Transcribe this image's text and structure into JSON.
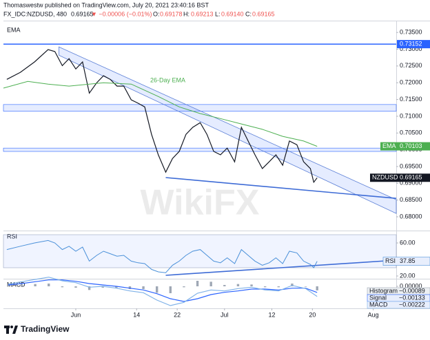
{
  "header": {
    "author_line": "Thomaswestw published on TradingView.com, July 20, 2021 23:40:16 BST",
    "symbol": "FX_IDC:NZDUSD, 480",
    "last": "0.69165",
    "change": "▼ −0.00006 (−0.01%)",
    "o_label": "O:",
    "o": "0.69178",
    "h_label": "H:",
    "h": "0.69213",
    "l_label": "L:",
    "l": "0.69140",
    "c_label": "C:",
    "c": "0.69165"
  },
  "watermark": "WikiFX",
  "footer": {
    "logo": "TradingView"
  },
  "chart_data": [
    {
      "type": "line",
      "title": "EMA",
      "x": [
        -10.2,
        -8.2,
        -6.1,
        -4.1,
        -3.1,
        -2,
        -1,
        0,
        1,
        2,
        3.1,
        4.1,
        5.1,
        6.1,
        7.1,
        8.2,
        9.2,
        10.2,
        11.2,
        12.2,
        13.3,
        14.3,
        15.3,
        16.3,
        17.3,
        18.4,
        19.4,
        20.4,
        21.4,
        22.4,
        23.5,
        24.5,
        25.5,
        26.5,
        27.6,
        28.6,
        29.6,
        30.6,
        31.6,
        32.7,
        33.7,
        34.7,
        35.2,
        35.7
      ],
      "series": [
        {
          "name": "NZDUSD",
          "color": "#131722",
          "values": [
            0.721,
            0.7231,
            0.7262,
            0.7299,
            0.7293,
            0.7251,
            0.7272,
            0.7241,
            0.7262,
            0.7169,
            0.72,
            0.7221,
            0.721,
            0.719,
            0.719,
            0.7149,
            0.7139,
            0.7128,
            0.7046,
            0.6985,
            0.6933,
            0.6974,
            0.6995,
            0.7046,
            0.7067,
            0.7081,
            0.7046,
            0.6995,
            0.6985,
            0.7005,
            0.6964,
            0.7067,
            0.7026,
            0.6985,
            0.6944,
            0.6964,
            0.6985,
            0.6954,
            0.7026,
            0.7015,
            0.6964,
            0.6944,
            0.6903,
            0.69165
          ]
        },
        {
          "name": "EMA",
          "color": "#4caf50",
          "annotation": "26-Day EMA",
          "x": [
            -10.7,
            -7.1,
            -4.1,
            -1,
            4.1,
            8.2,
            12.2,
            15.3,
            18.4,
            21.4,
            24.5,
            27.6,
            30.6,
            33.7,
            35.7
          ],
          "values": [
            0.7184,
            0.7204,
            0.7196,
            0.719,
            0.72,
            0.7196,
            0.7159,
            0.7128,
            0.7108,
            0.7093,
            0.7077,
            0.7061,
            0.704,
            0.7026,
            0.70103
          ]
        }
      ],
      "hlines": [
        {
          "value": 0.73152,
          "color": "#2962ff"
        }
      ],
      "zones": [
        {
          "from": 0.7115,
          "to": 0.7135
        },
        {
          "from": 0.6995,
          "to": 0.7005
        }
      ],
      "channel": {
        "x": [
          -2.5,
          47.4
        ],
        "upper": [
          0.7307,
          0.6851
        ],
        "lower": [
          0.7282,
          0.681
        ]
      },
      "trendlines": [
        {
          "x": [
            13.3,
            47.4
          ],
          "y": [
            0.6917,
            0.6855
          ],
          "color": "#3d6bd6"
        }
      ],
      "xlim": [
        -10.7,
        47.4
      ],
      "ylim": [
        0.6763,
        0.7375
      ],
      "yticks": [
        {
          "value": 0.68,
          "label": "0.68000"
        },
        {
          "value": 0.685,
          "label": "0.68500"
        },
        {
          "value": 0.69,
          "label": "0.69000"
        },
        {
          "value": 0.695,
          "label": "0.69500"
        },
        {
          "value": 0.7,
          "label": "0.70000"
        },
        {
          "value": 0.705,
          "label": "0.70500"
        },
        {
          "value": 0.71,
          "label": "0.71000"
        },
        {
          "value": 0.715,
          "label": "0.71500"
        },
        {
          "value": 0.72,
          "label": "0.72000"
        },
        {
          "value": 0.725,
          "label": "0.72500"
        },
        {
          "value": 0.73,
          "label": "0.73000"
        },
        {
          "value": 0.735,
          "label": "0.73500"
        }
      ]
    },
    {
      "type": "line",
      "title": "RSI",
      "x": [
        -10.2,
        -8.2,
        -6.1,
        -4.1,
        -3.1,
        -2,
        -1,
        0,
        1,
        2,
        3.1,
        4.1,
        5.1,
        6.1,
        7.1,
        8.2,
        9.2,
        10.2,
        11.2,
        12.2,
        13.3,
        14.3,
        15.3,
        16.3,
        17.3,
        18.4,
        19.4,
        20.4,
        21.4,
        22.4,
        23.5,
        24.5,
        25.5,
        26.5,
        27.6,
        28.6,
        29.6,
        30.6,
        31.6,
        32.7,
        33.7,
        34.7,
        35.2,
        35.7
      ],
      "series": [
        {
          "name": "RSI",
          "color": "#4a90d9",
          "values": [
            52,
            56,
            60,
            63,
            60,
            52,
            56,
            50,
            55,
            38,
            45,
            50,
            47,
            44,
            45,
            38,
            36,
            35,
            28,
            25,
            24,
            33,
            38,
            45,
            50,
            52,
            45,
            38,
            36,
            42,
            35,
            52,
            45,
            38,
            33,
            36,
            42,
            35,
            50,
            48,
            38,
            34,
            30,
            37.85
          ]
        }
      ],
      "band": [
        30,
        70
      ],
      "trendlines": [
        {
          "x": [
            13.3,
            47.4
          ],
          "y": [
            20.8,
            39.2
          ],
          "color": "#3d6bd6"
        }
      ],
      "xlim": [
        -10.7,
        47.4
      ],
      "ylim": [
        17.5,
        72.5
      ],
      "yticks": [
        {
          "value": 60,
          "label": "60.00"
        },
        {
          "value": 20,
          "label": "20.00"
        }
      ]
    },
    {
      "type": "macd",
      "title": "MACD",
      "x": [
        -10,
        -8,
        -6,
        -4,
        -2,
        0,
        2,
        4,
        6,
        8,
        10,
        12,
        14,
        16,
        18,
        20,
        22,
        24,
        26,
        28,
        30,
        32,
        34,
        35.7
      ],
      "series": [
        {
          "name": "Histogram",
          "color": "#9fa8b5",
          "last_value_label": "−0.00089",
          "values": [
            0.0002,
            0.0004,
            0.0005,
            0.0006,
            -0.0002,
            -0.0003,
            -0.0008,
            -0.0003,
            -0.0004,
            -0.0006,
            -0.0006,
            -0.0014,
            -0.0015,
            -0.0002,
            0.0012,
            0.001,
            0.0003,
            0.0005,
            0.0004,
            -0.0002,
            -0.0002,
            0.0006,
            -0.0001,
            -0.00089
          ]
        },
        {
          "name": "Signal",
          "color": "#2962ff",
          "last_value_label": "−0.00133",
          "values": [
            0.0003,
            0.0006,
            0.001,
            0.0014,
            0.0014,
            0.0011,
            0.0006,
            0.0003,
            0.0,
            -0.0004,
            -0.0008,
            -0.0016,
            -0.0027,
            -0.0033,
            -0.0027,
            -0.0018,
            -0.0013,
            -0.001,
            -0.0006,
            -0.0006,
            -0.0008,
            -0.0004,
            -0.0004,
            -0.00133
          ]
        },
        {
          "name": "MACD",
          "color": "#7fb2e8",
          "last_value_label": "−0.00222",
          "values": [
            0.0005,
            0.001,
            0.0015,
            0.002,
            0.0012,
            0.0008,
            -0.0002,
            0.0,
            -0.0004,
            -0.001,
            -0.0014,
            -0.003,
            -0.0042,
            -0.0035,
            -0.0015,
            -0.0008,
            -0.001,
            -0.0005,
            -0.0002,
            -0.0008,
            -0.001,
            0.0002,
            -0.0005,
            -0.00222
          ]
        }
      ],
      "xlim": [
        -10.7,
        47.4
      ],
      "ylim": [
        -0.0045,
        0.0012
      ],
      "yticks": [
        {
          "value": 0,
          "label": "0.00000"
        }
      ],
      "xticks": [
        {
          "value": 0,
          "label": "Jun"
        },
        {
          "value": 9,
          "label": "14"
        },
        {
          "value": 15,
          "label": "22"
        },
        {
          "value": 22,
          "label": "Jul"
        },
        {
          "value": 29,
          "label": "12"
        },
        {
          "value": 35,
          "label": "20"
        },
        {
          "value": 44,
          "label": "Aug"
        }
      ]
    }
  ]
}
